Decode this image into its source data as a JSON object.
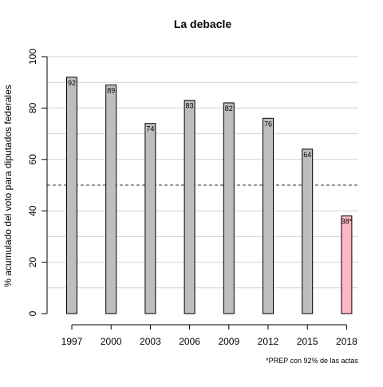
{
  "chart_data": {
    "type": "bar",
    "title": "La debacle",
    "xlabel": "",
    "ylabel": "% acumulado del voto para diputados federales",
    "categories": [
      "1997",
      "2000",
      "2003",
      "2006",
      "2009",
      "2012",
      "2015",
      "2018"
    ],
    "values": [
      92,
      89,
      74,
      83,
      82,
      76,
      64,
      38
    ],
    "data_labels": [
      "92",
      "89",
      "74",
      "83",
      "82",
      "76",
      "64",
      "38*"
    ],
    "ylim": [
      0,
      100
    ],
    "yticks": [
      0,
      20,
      40,
      60,
      80,
      100
    ],
    "grid_values": [
      10,
      20,
      30,
      40,
      60,
      70,
      80,
      90,
      100
    ],
    "reference_line": 50,
    "grid": true,
    "colors": {
      "bar": "#bebebe",
      "highlight": "#ffb6c1",
      "highlight_index": 7,
      "grid": "#d3d3d3"
    },
    "footnote": "*PREP con 92% de las actas"
  }
}
